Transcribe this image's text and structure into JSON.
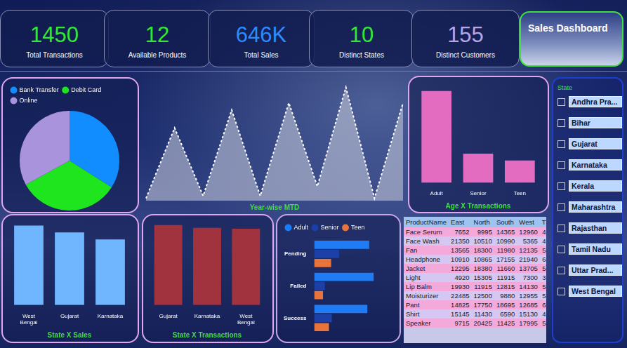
{
  "header": {
    "title": "Sales Dashboard"
  },
  "kpis": [
    {
      "value": "1450",
      "label": "Total Transactions",
      "color": "#33e833"
    },
    {
      "value": "12",
      "label": "Available Products",
      "color": "#33e833"
    },
    {
      "value": "646K",
      "label": "Total Sales",
      "color": "#2a8cff"
    },
    {
      "value": "10",
      "label": "Distinct States",
      "color": "#33e833"
    },
    {
      "value": "155",
      "label": "Distinct Customers",
      "color": "#b8a6e6"
    }
  ],
  "chart_data": [
    {
      "type": "pie",
      "categories": [
        "Bank Transfer",
        "Debit Card",
        "Online"
      ],
      "values": [
        34,
        33,
        33
      ],
      "colors": [
        "#118dff",
        "#1ee51e",
        "#a893dc"
      ],
      "legend": "top-left"
    },
    {
      "type": "area",
      "title": "Year-wise MTD",
      "categories": [
        null,
        null,
        null,
        null,
        null,
        null,
        null,
        null,
        null,
        null
      ],
      "values": [
        2,
        61,
        4,
        76,
        4,
        82,
        12,
        95,
        2,
        82
      ],
      "color": "#ffffff",
      "line_style": "dashed",
      "ylim": [
        0,
        100
      ],
      "tick_labels": false,
      "grid": false
    },
    {
      "type": "bar",
      "title": "Age X Transactions",
      "categories": [
        "Adult",
        "Senior",
        "Teen"
      ],
      "values": [
        930,
        295,
        225
      ],
      "color": "#e46cc0",
      "ylim": [
        0,
        1000
      ],
      "tick_labels": "x",
      "grid": false
    },
    {
      "type": "bar",
      "title": "State X Sales",
      "categories": [
        "West Bengal",
        "Gujarat",
        "Karnataka"
      ],
      "values": [
        75000,
        68500,
        62000
      ],
      "color": "#70b6ff",
      "ylim": [
        0,
        80000
      ],
      "tick_labels": "x",
      "grid": false
    },
    {
      "type": "bar",
      "title": "State X Transactions",
      "categories": [
        "Gujarat",
        "Karnataka",
        "West Bengal"
      ],
      "values": [
        170,
        164,
        162
      ],
      "color": "#a1333f",
      "ylim": [
        0,
        180
      ],
      "tick_labels": "x",
      "grid": false
    },
    {
      "type": "bar",
      "orientation": "horizontal",
      "categories": [
        "Pending",
        "Failed",
        "Success"
      ],
      "series": [
        {
          "name": "Adult",
          "color": "#1f7cf5",
          "values": [
            305,
            330,
            295
          ]
        },
        {
          "name": "Senior",
          "color": "#1c3fa8",
          "values": [
            138,
            59,
            98
          ]
        },
        {
          "name": "Teen",
          "color": "#e8743b",
          "values": [
            94,
            49,
            82
          ]
        }
      ],
      "xlim": [
        0,
        450
      ],
      "tick_labels": "y",
      "legend": "top-left",
      "grid": false
    }
  ],
  "table": {
    "columns": [
      "ProductName",
      "East",
      "North",
      "South",
      "West",
      "T"
    ],
    "rows": [
      [
        "Face Serum",
        "7652",
        "9995",
        "14365",
        "12960",
        "4"
      ],
      [
        "Face Wash",
        "21350",
        "10510",
        "10990",
        "5365",
        "4"
      ],
      [
        "Fan",
        "13565",
        "18300",
        "11980",
        "12135",
        "5"
      ],
      [
        "Headphone",
        "10910",
        "10865",
        "17155",
        "21940",
        "6"
      ],
      [
        "Jacket",
        "12295",
        "18380",
        "11660",
        "13705",
        "5"
      ],
      [
        "Light",
        "4920",
        "15305",
        "11915",
        "7300",
        "3"
      ],
      [
        "Lip Balm",
        "19930",
        "11915",
        "12815",
        "14130",
        "5"
      ],
      [
        "Moisturizer",
        "22485",
        "12500",
        "9880",
        "12955",
        "5"
      ],
      [
        "Pant",
        "14825",
        "17750",
        "18695",
        "12685",
        "6"
      ],
      [
        "Shirt",
        "15145",
        "11430",
        "6590",
        "15130",
        "4"
      ],
      [
        "Speaker",
        "9715",
        "20425",
        "11425",
        "17995",
        "5"
      ]
    ]
  },
  "slicer": {
    "title": "State",
    "items": [
      "Andhra Pra...",
      "Bihar",
      "Gujarat",
      "Karnataka",
      "Kerala",
      "Maharashtra",
      "Rajasthan",
      "Tamil Nadu",
      "Uttar Prad...",
      "West Bengal"
    ]
  }
}
